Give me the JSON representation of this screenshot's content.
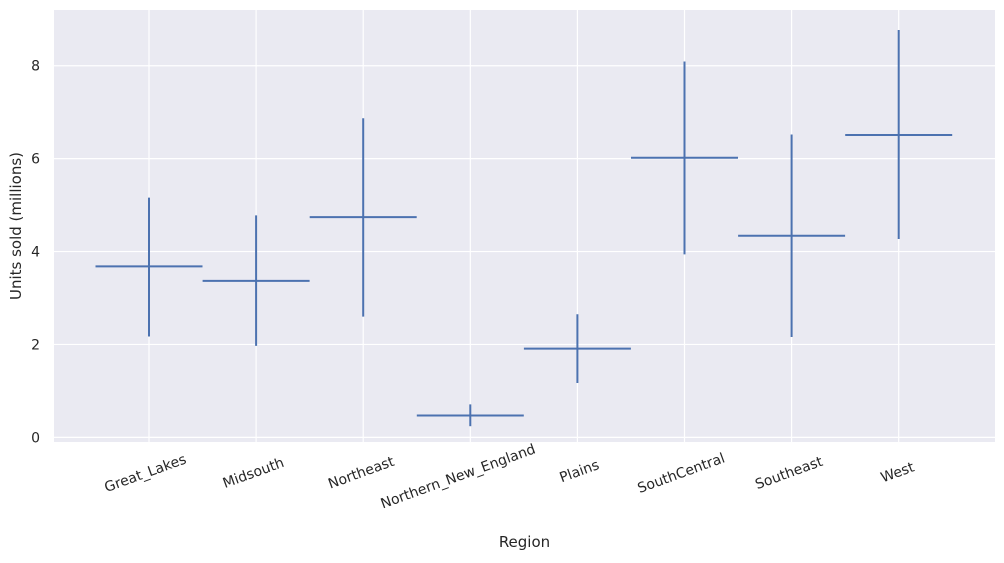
{
  "chart_data": {
    "type": "errorbar",
    "categories": [
      "Great_Lakes",
      "Midsouth",
      "Northeast",
      "Northern_New_England",
      "Plains",
      "SouthCentral",
      "Southeast",
      "West"
    ],
    "series": [
      {
        "values": [
          3.68,
          3.37,
          4.74,
          0.47,
          1.91,
          6.02,
          4.34,
          6.51
        ],
        "lower": [
          2.17,
          1.97,
          2.6,
          0.24,
          1.17,
          3.94,
          2.16,
          4.27
        ],
        "upper": [
          5.16,
          4.78,
          6.87,
          0.71,
          2.65,
          8.09,
          6.52,
          8.77
        ]
      }
    ],
    "xlabel": "Region",
    "ylabel": "Units sold (millions)",
    "ylim": [
      -0.1,
      9.2
    ],
    "yticks": [
      0,
      2,
      4,
      6,
      8
    ],
    "grid": true,
    "colors": {
      "series": "#4c72b0",
      "background": "#eaeaf2",
      "grid": "#ffffff"
    }
  }
}
